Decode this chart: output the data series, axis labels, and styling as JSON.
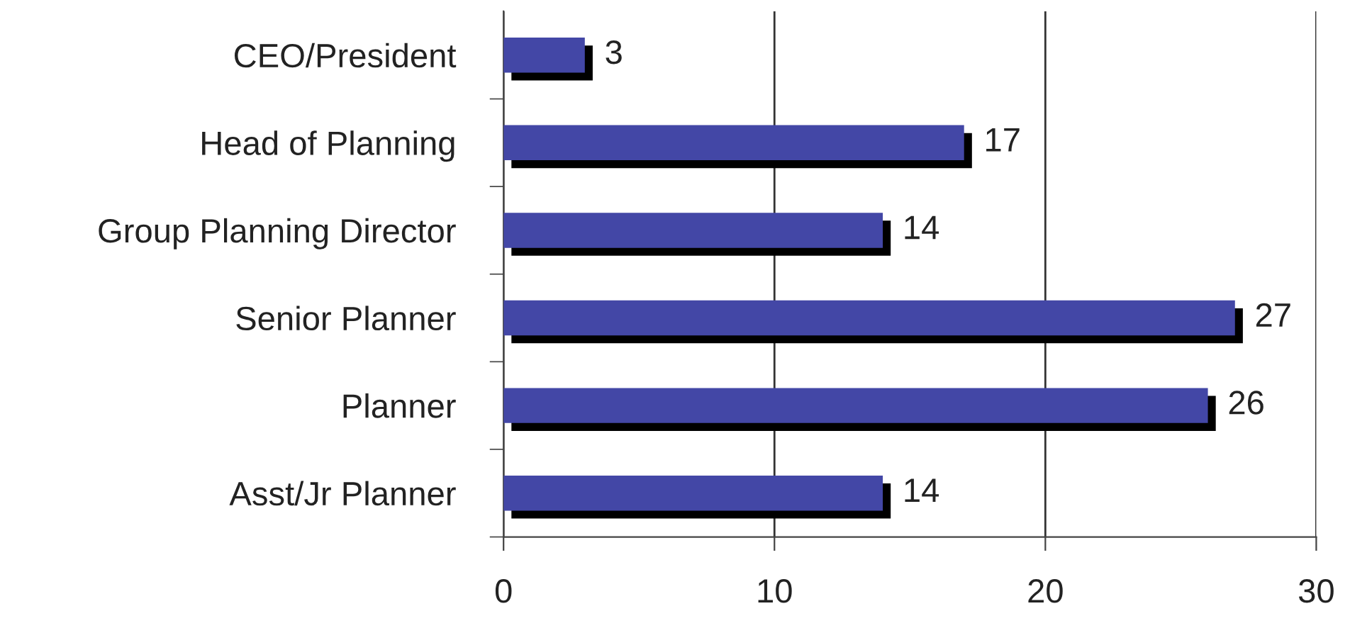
{
  "chart_data": {
    "type": "bar",
    "orientation": "horizontal",
    "categories": [
      "CEO/President",
      "Head of Planning",
      "Group Planning Director",
      "Senior Planner",
      "Planner",
      "Asst/Jr Planner"
    ],
    "values": [
      3,
      17,
      14,
      27,
      26,
      14
    ],
    "color": "#4347a6",
    "xlim": [
      0,
      30
    ],
    "xticks": [
      0,
      10,
      20,
      30
    ],
    "grid": "x",
    "data_labels": true
  }
}
